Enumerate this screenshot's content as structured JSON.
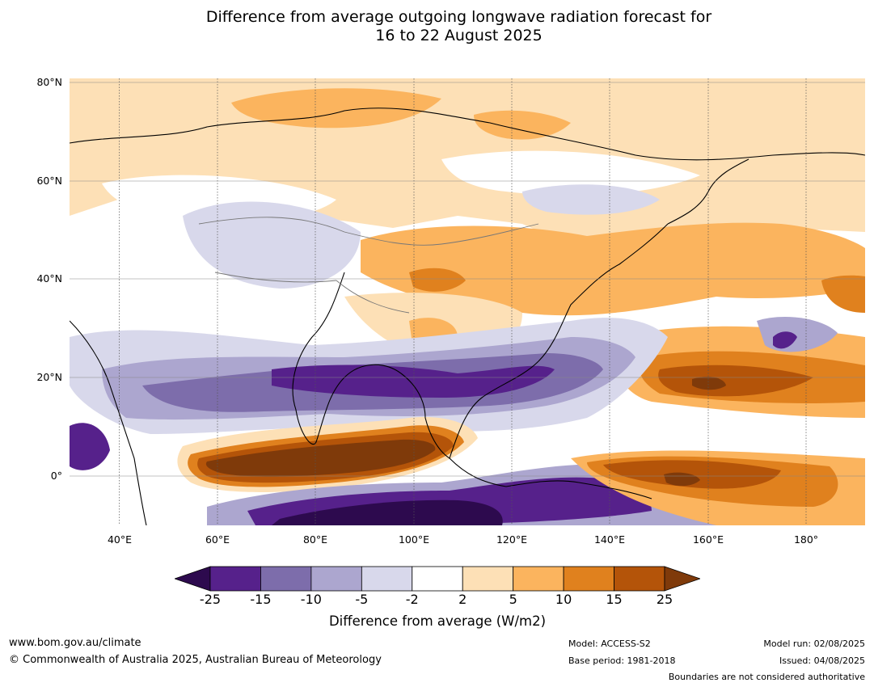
{
  "title": {
    "line1": "Difference from average outgoing longwave radiation forecast for",
    "line2": "16 to 22 August 2025"
  },
  "map": {
    "type": "contour-anomaly-map",
    "lat_ticks": [
      "80°N",
      "60°N",
      "40°N",
      "20°N",
      "0°"
    ],
    "lon_ticks": [
      "40°E",
      "60°E",
      "80°E",
      "100°E",
      "120°E",
      "140°E",
      "160°E",
      "180°"
    ],
    "extent": {
      "lon": [
        30,
        192
      ],
      "lat": [
        -10,
        81
      ]
    }
  },
  "colorbar": {
    "levels": [
      "-25",
      "-15",
      "-10",
      "-5",
      "-2",
      "2",
      "5",
      "10",
      "15",
      "25"
    ],
    "colors": [
      "#2d0a4e",
      "#56218b",
      "#7d6dab",
      "#aca6cf",
      "#d8d8eb",
      "#ffffff",
      "#fde0b6",
      "#fbb45e",
      "#e0811e",
      "#b45409",
      "#7f3a0a"
    ],
    "label": "Difference from average (W/m2)"
  },
  "footer": {
    "url": "www.bom.gov.au/climate",
    "copyright": "© Commonwealth of Australia 2025, Australian Bureau of Meteorology",
    "model": "Model: ACCESS-S2",
    "base_period": "Base period: 1981-2018",
    "model_run": "Model run: 02/08/2025",
    "issued": "Issued: 04/08/2025",
    "disclaimer": "Boundaries are not considered authoritative"
  }
}
